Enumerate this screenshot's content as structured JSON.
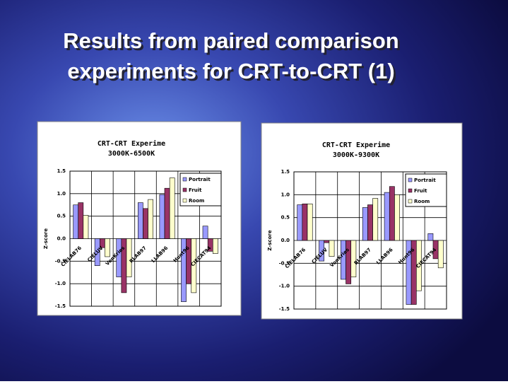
{
  "slide": {
    "title_lines": [
      "Results from paired comparison",
      "experiments for CRT-to-CRT (1)"
    ]
  },
  "chart_data": [
    {
      "type": "bar",
      "title": "CRT-CRT Experime",
      "subtitle": "3000K-6500K",
      "ylabel": "Z-score",
      "categories": [
        "CIELAB76",
        "CIELUV",
        "VonKries",
        "RLAB97",
        "LLAB96",
        "Hunt96",
        "CIECAT94"
      ],
      "series": [
        {
          "name": "Portrait",
          "color": "#9999ff",
          "values": [
            0.75,
            -0.6,
            -0.85,
            0.8,
            0.98,
            -1.4,
            0.28
          ]
        },
        {
          "name": "Fruit",
          "color": "#993366",
          "values": [
            0.8,
            -0.2,
            -1.2,
            0.67,
            1.12,
            -1.0,
            -0.28
          ]
        },
        {
          "name": "Room",
          "color": "#ffffcc",
          "values": [
            0.52,
            -0.4,
            -0.85,
            0.87,
            1.35,
            -1.2,
            -0.33
          ]
        }
      ],
      "ylim": [
        -1.5,
        1.5
      ],
      "yticks": [
        1.5,
        {
          "value": 1,
          "label": "1.0"
        },
        0.5,
        {
          "value": 0,
          "label": "0.0"
        },
        -0.5,
        {
          "value": -1,
          "label": "-1.0"
        },
        -1.5
      ],
      "grid": true,
      "legend": "upper right"
    },
    {
      "type": "bar",
      "title": "CRT-CRT Experime",
      "subtitle": "3000K-9300K",
      "ylabel": "Z-score",
      "categories": [
        "CIELAB76",
        "CIELUV",
        "VonKries",
        "RLAB97",
        "LLAB96",
        "Hunt96",
        "CIECAT94"
      ],
      "series": [
        {
          "name": "Portrait",
          "color": "#9999ff",
          "values": [
            0.78,
            -0.45,
            -0.85,
            0.72,
            1.05,
            -1.4,
            0.15
          ]
        },
        {
          "name": "Fruit",
          "color": "#993366",
          "values": [
            0.8,
            -0.05,
            -0.95,
            0.78,
            1.18,
            -1.4,
            -0.4
          ]
        },
        {
          "name": "Room",
          "color": "#ffffcc",
          "values": [
            0.8,
            -0.35,
            -0.8,
            0.92,
            1.0,
            -1.1,
            -0.6
          ]
        }
      ],
      "ylim": [
        -1.5,
        1.5
      ],
      "yticks": [
        1.5,
        {
          "value": 1,
          "label": "1.0"
        },
        0.5,
        {
          "value": 0,
          "label": "0.0"
        },
        -0.5,
        {
          "value": -1,
          "label": "-1.0"
        },
        -1.5
      ],
      "grid": true,
      "legend": "upper right"
    }
  ]
}
